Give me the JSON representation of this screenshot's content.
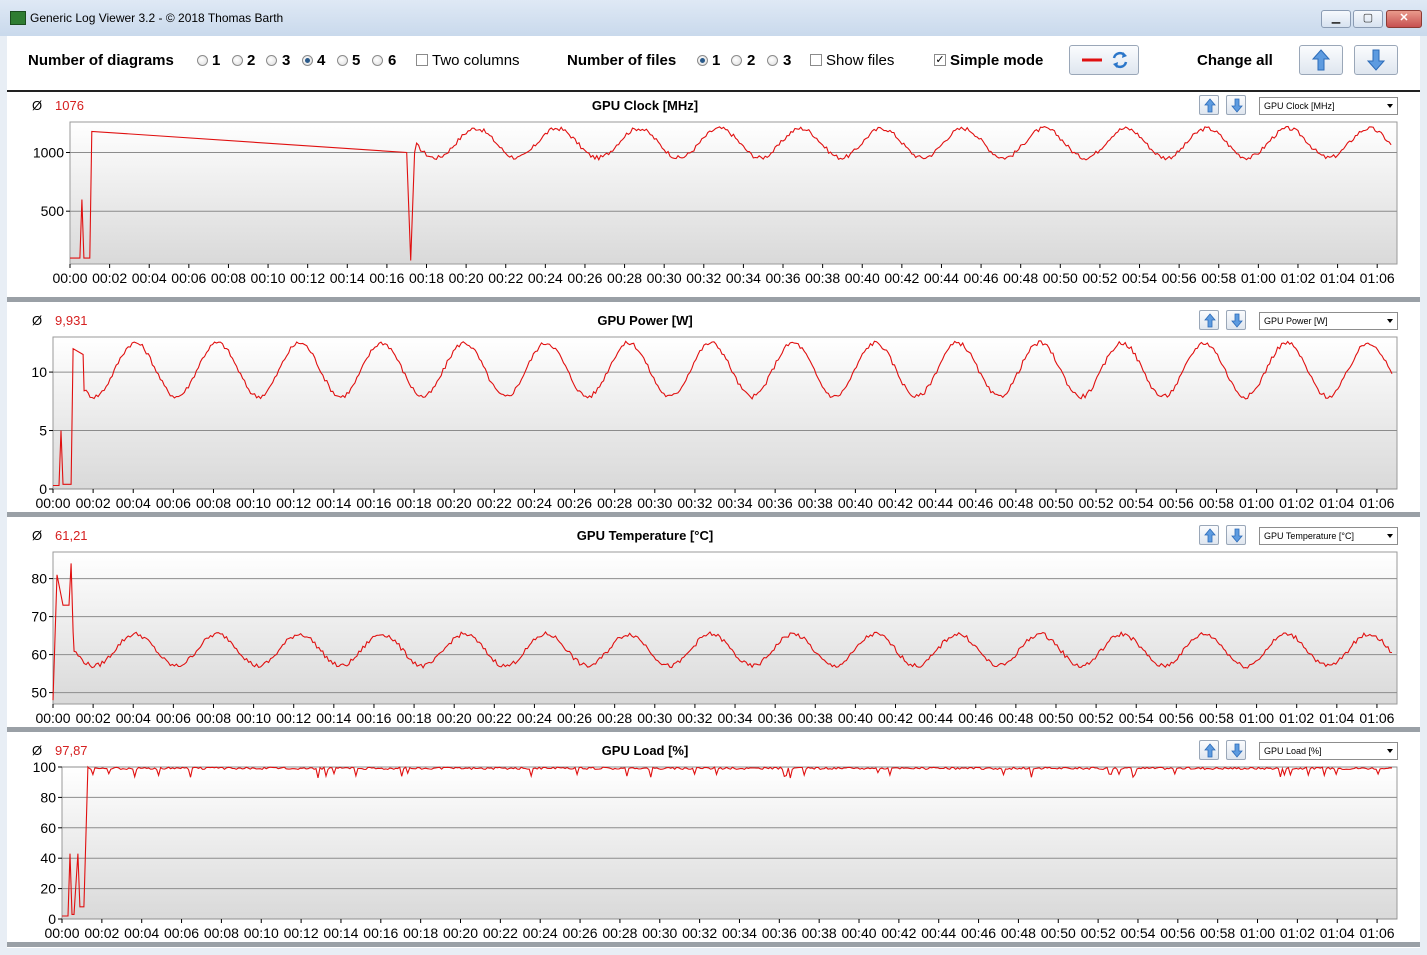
{
  "window": {
    "title": "Generic Log Viewer 3.2 - © 2018 Thomas Barth",
    "controls": {
      "minimize": "▁",
      "maximize": "▢",
      "close": "✕"
    }
  },
  "toolbar": {
    "diagrams_label": "Number of diagrams",
    "diagram_options": [
      "1",
      "2",
      "3",
      "4",
      "5",
      "6"
    ],
    "diagram_selected": "4",
    "two_columns_label": "Two columns",
    "two_columns_checked": false,
    "files_label": "Number of files",
    "file_options": [
      "1",
      "2",
      "3"
    ],
    "file_selected": "1",
    "show_files_label": "Show files",
    "show_files_checked": false,
    "simple_mode_label": "Simple mode",
    "simple_mode_checked": true,
    "change_all_label": "Change all",
    "icons": {
      "line_color": "red-line-icon",
      "refresh": "refresh-icon",
      "up": "arrow-up-icon",
      "down": "arrow-down-icon"
    }
  },
  "colors": {
    "series": "#e01010",
    "accent": "#3b7bd4"
  },
  "time_ticks": [
    "00:00",
    "00:02",
    "00:04",
    "00:06",
    "00:08",
    "00:10",
    "00:12",
    "00:14",
    "00:16",
    "00:18",
    "00:20",
    "00:22",
    "00:24",
    "00:26",
    "00:28",
    "00:30",
    "00:32",
    "00:34",
    "00:36",
    "00:38",
    "00:40",
    "00:42",
    "00:44",
    "00:46",
    "00:48",
    "00:50",
    "00:52",
    "00:54",
    "00:56",
    "00:58",
    "01:00",
    "01:02",
    "01:04",
    "01:06"
  ],
  "panels": [
    {
      "title": "GPU Clock [MHz]",
      "avg_symbol": "Ø",
      "avg_value": "1076",
      "selector": "GPU Clock [MHz]"
    },
    {
      "title": "GPU Power [W]",
      "avg_symbol": "Ø",
      "avg_value": "9,931",
      "selector": "GPU Power [W]"
    },
    {
      "title": "GPU Temperature [°C]",
      "avg_symbol": "Ø",
      "avg_value": "61,21",
      "selector": "GPU Temperature [°C]"
    },
    {
      "title": "GPU Load [%]",
      "avg_symbol": "Ø",
      "avg_value": "97,87",
      "selector": "GPU Load [%]"
    }
  ],
  "chart_data": [
    {
      "type": "line",
      "title": "GPU Clock [MHz]",
      "x_unit": "minutes",
      "x_range": [
        0,
        67
      ],
      "ylim": [
        50,
        1260
      ],
      "yticks": [
        500,
        1000
      ],
      "grid": true,
      "base": 1080,
      "amplitude": 125,
      "period_minutes": 4.1,
      "special_points": [
        [
          0,
          100
        ],
        [
          0.5,
          100
        ],
        [
          0.6,
          600
        ],
        [
          0.7,
          100
        ],
        [
          1.0,
          100
        ],
        [
          1.1,
          1180
        ],
        [
          17.0,
          1000
        ],
        [
          17.2,
          80
        ],
        [
          17.4,
          1000
        ]
      ]
    },
    {
      "type": "line",
      "title": "GPU Power [W]",
      "x_unit": "minutes",
      "x_range": [
        0,
        67
      ],
      "ylim": [
        0,
        13
      ],
      "yticks": [
        0,
        5,
        10
      ],
      "grid": true,
      "base": 10.2,
      "amplitude": 2.3,
      "period_minutes": 4.1,
      "special_points": [
        [
          0,
          0.3
        ],
        [
          0.3,
          0.3
        ],
        [
          0.4,
          5
        ],
        [
          0.5,
          0.4
        ],
        [
          0.9,
          0.4
        ],
        [
          1.0,
          12
        ],
        [
          1.5,
          11.5
        ]
      ]
    },
    {
      "type": "line",
      "title": "GPU Temperature [°C]",
      "x_unit": "minutes",
      "x_range": [
        0,
        67
      ],
      "ylim": [
        47,
        87
      ],
      "yticks": [
        50,
        60,
        70,
        80
      ],
      "grid": true,
      "base": 61.2,
      "amplitude": 4.2,
      "period_minutes": 4.1,
      "special_points": [
        [
          0,
          48
        ],
        [
          0.2,
          81
        ],
        [
          0.5,
          73
        ],
        [
          0.8,
          73
        ],
        [
          0.9,
          84
        ],
        [
          1.0,
          66
        ]
      ]
    },
    {
      "type": "line",
      "title": "GPU Load [%]",
      "x_unit": "minutes",
      "x_range": [
        0,
        67
      ],
      "ylim": [
        0,
        100
      ],
      "yticks": [
        0,
        20,
        40,
        60,
        80,
        100
      ],
      "grid": true,
      "base": 99,
      "amplitude": 0.6,
      "period_minutes": 4.1,
      "special_points": [
        [
          0,
          2
        ],
        [
          0.3,
          2
        ],
        [
          0.4,
          43
        ],
        [
          0.5,
          3
        ],
        [
          0.6,
          3
        ],
        [
          0.8,
          43
        ],
        [
          0.9,
          8
        ],
        [
          1.1,
          8
        ],
        [
          1.3,
          100
        ]
      ]
    }
  ]
}
